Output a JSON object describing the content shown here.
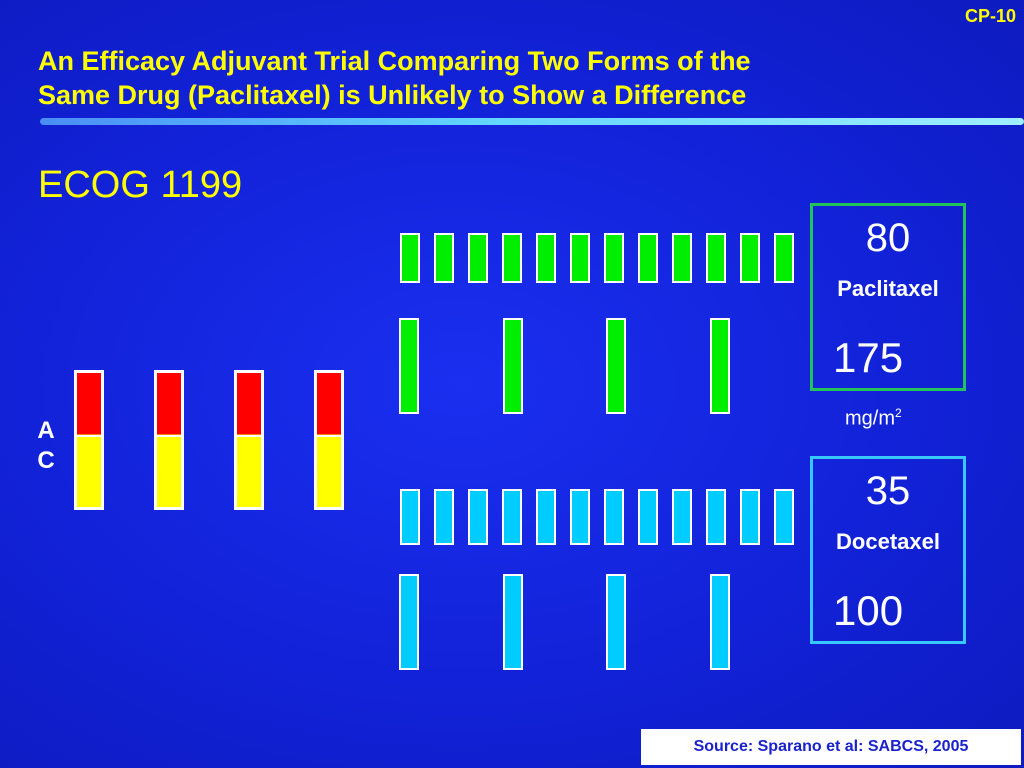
{
  "slide_id": "CP-10",
  "title_line1": "An Efficacy Adjuvant Trial Comparing Two Forms of the",
  "title_line2": "Same Drug (Paclitaxel) is Unlikely to Show a Difference",
  "subtitle": "ECOG 1199",
  "ac": {
    "letter1": "A",
    "letter2": "C",
    "cycles": 4
  },
  "paclitaxel": {
    "weekly_dose": "80",
    "drug": "Paclitaxel",
    "q3w_dose": "175",
    "weekly_count": 12,
    "q3w_count": 4,
    "color": "#00ee00"
  },
  "units_base": "mg/m",
  "units_exp": "2",
  "docetaxel": {
    "weekly_dose": "35",
    "drug": "Docetaxel",
    "q3w_dose": "100",
    "weekly_count": 12,
    "q3w_count": 4,
    "color": "#00ccff"
  },
  "source": "Source:  Sparano et al:  SABCS, 2005",
  "colors": {
    "title": "#ffff00",
    "ac_top": "#ff0000",
    "ac_bottom": "#ffff00",
    "pac_box": "#22c45a",
    "doc_box": "#38c8ff"
  }
}
